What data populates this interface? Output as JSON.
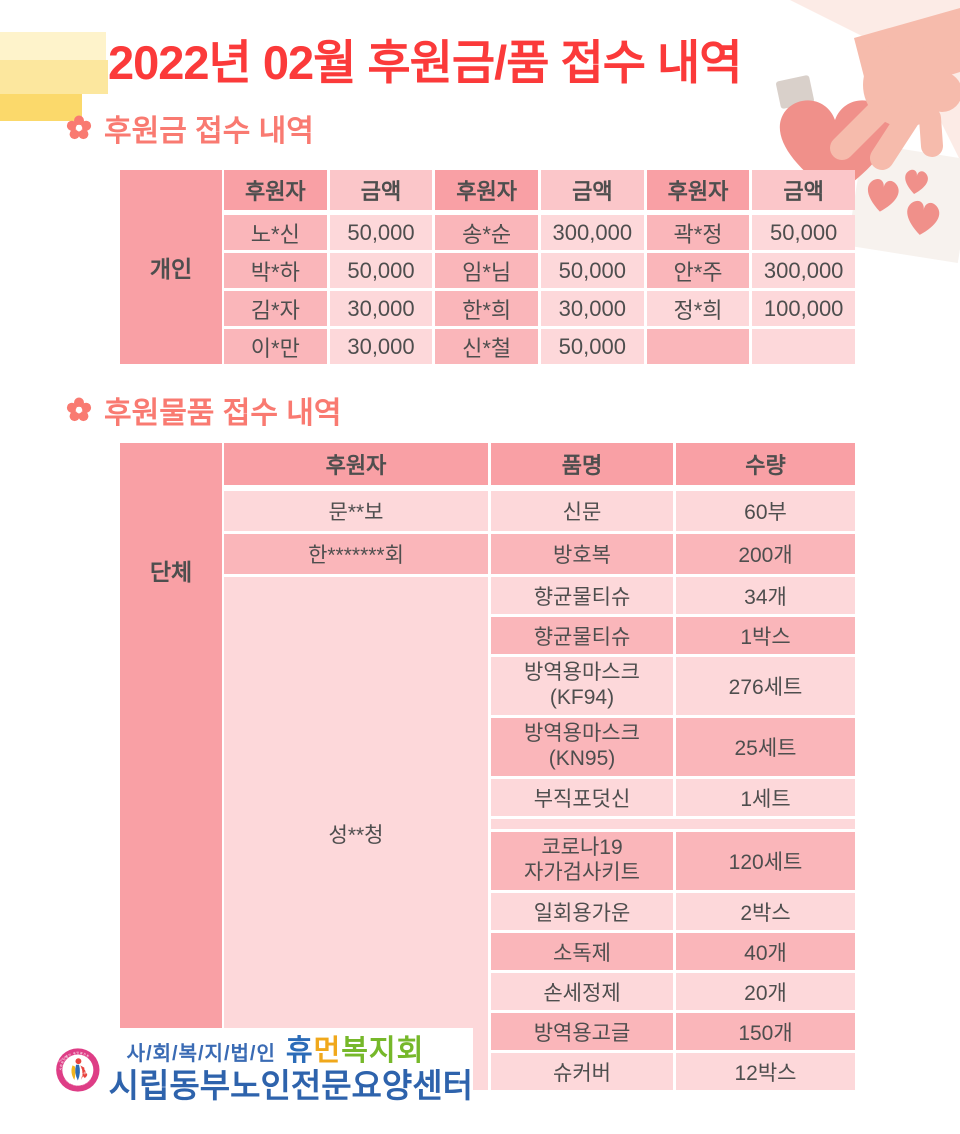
{
  "title": "2022년 02월 후원금/품 접수 내역",
  "section_money": {
    "heading": "후원금 접수 내역"
  },
  "section_goods": {
    "heading": "후원물품 접수 내역"
  },
  "money_table": {
    "row_label": "개인",
    "headers": [
      "후원자",
      "금액",
      "후원자",
      "금액",
      "후원자",
      "금액"
    ],
    "rows": [
      [
        "노*신",
        "50,000",
        "송*순",
        "300,000",
        "곽*정",
        "50,000"
      ],
      [
        "박*하",
        "50,000",
        "임*님",
        "50,000",
        "안*주",
        "300,000"
      ],
      [
        "김*자",
        "30,000",
        "한*희",
        "30,000",
        "정*희",
        "100,000"
      ],
      [
        "이*만",
        "30,000",
        "신*철",
        "50,000",
        "",
        ""
      ]
    ]
  },
  "goods_table": {
    "row_label": "단체",
    "headers": [
      "후원자",
      "품명",
      "수량"
    ],
    "rows": [
      {
        "donor": "문**보",
        "item": "신문",
        "qty": "60부",
        "tone": "light"
      },
      {
        "donor": "한*******회",
        "item": "방호복",
        "qty": "200개",
        "tone": "dark"
      }
    ],
    "merged_donor": "성**청",
    "merged_rows": [
      {
        "item": "향균물티슈",
        "qty": "34개",
        "tone": "light"
      },
      {
        "item": "향균물티슈",
        "qty": "1박스",
        "tone": "dark"
      },
      {
        "item": "방역용마스크\n(KF94)",
        "qty": "276세트",
        "tone": "light",
        "tall": true
      },
      {
        "item": "방역용마스크\n(KN95)",
        "qty": "25세트",
        "tone": "dark",
        "tall": true
      },
      {
        "item": "부직포덧신",
        "qty": "1세트",
        "tone": "light"
      },
      {
        "spacer": true
      },
      {
        "item": "코로나19\n자가검사키트",
        "qty": "120세트",
        "tone": "dark",
        "tall": true
      },
      {
        "item": "일회용가운",
        "qty": "2박스",
        "tone": "light"
      },
      {
        "item": "소독제",
        "qty": "40개",
        "tone": "dark"
      },
      {
        "item": "손세정제",
        "qty": "20개",
        "tone": "light"
      },
      {
        "item": "방역용고글",
        "qty": "150개",
        "tone": "dark"
      },
      {
        "item": "슈커버",
        "qty": "12박스",
        "tone": "light"
      }
    ]
  },
  "footer": {
    "org_prefix": "사/회/복/지/법/인",
    "org_hu": "휴",
    "org_meon": "먼",
    "org_rest": "복지회",
    "org_line2": "시립동부노인전문요양센터",
    "emblem": {
      "ring_top": "사회복지법인 휴먼복지회",
      "ring_bottom": "Human Social Welfare Foundation",
      "since": "SINCE 2008"
    }
  },
  "colors": {
    "title_red": "#FB3A3A",
    "heading_coral": "#F97A71",
    "table_salmon": "#F9A0A5",
    "table_mid_pink": "#FAB6BA",
    "table_light_pink": "#FDD8DA",
    "header_amount_pink": "#FBC6C9",
    "text_gray": "#4E4E4E"
  }
}
